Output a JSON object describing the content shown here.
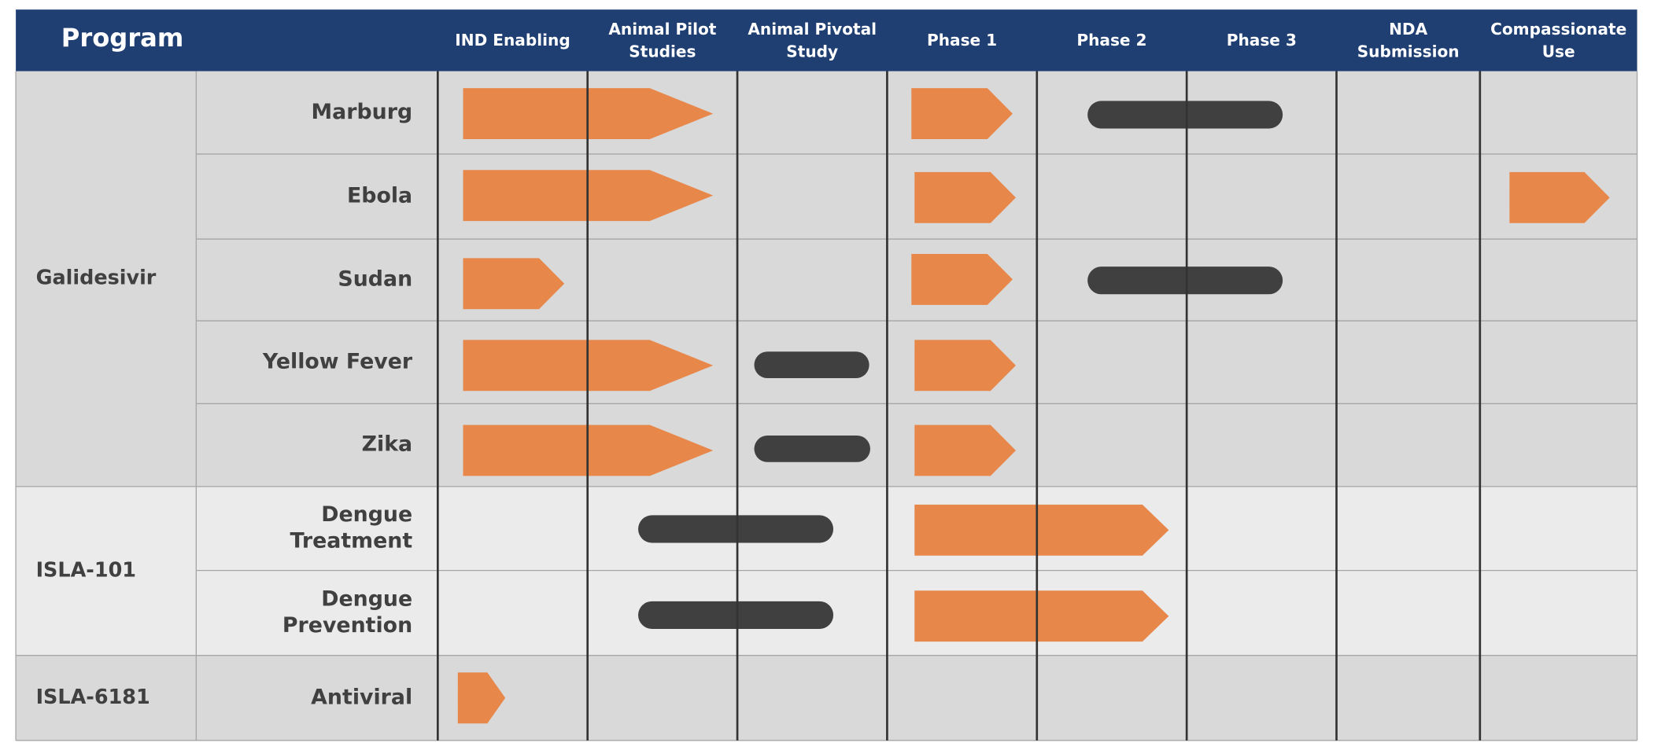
{
  "header": {
    "title": "Program",
    "columns": [
      [
        "IND Enabling"
      ],
      [
        "Animal Pilot",
        "Studies"
      ],
      [
        "Animal Pivotal",
        "Study"
      ],
      [
        "Phase 1"
      ],
      [
        "Phase 2"
      ],
      [
        "Phase 3"
      ],
      [
        "NDA",
        "Submission"
      ],
      [
        "Compassionate",
        "Use"
      ]
    ]
  },
  "programs": [
    {
      "name": "Galidesivir",
      "indications": [
        [
          "Marburg"
        ],
        [
          "Ebola"
        ],
        [
          "Sudan"
        ],
        [
          "Yellow Fever"
        ],
        [
          "Zika"
        ]
      ]
    },
    {
      "name": "ISLA-101",
      "indications": [
        [
          "Dengue",
          "Treatment"
        ],
        [
          "Dengue",
          "Prevention"
        ]
      ]
    },
    {
      "name": "ISLA-6181",
      "indications": [
        [
          "Antiviral"
        ]
      ]
    }
  ]
}
